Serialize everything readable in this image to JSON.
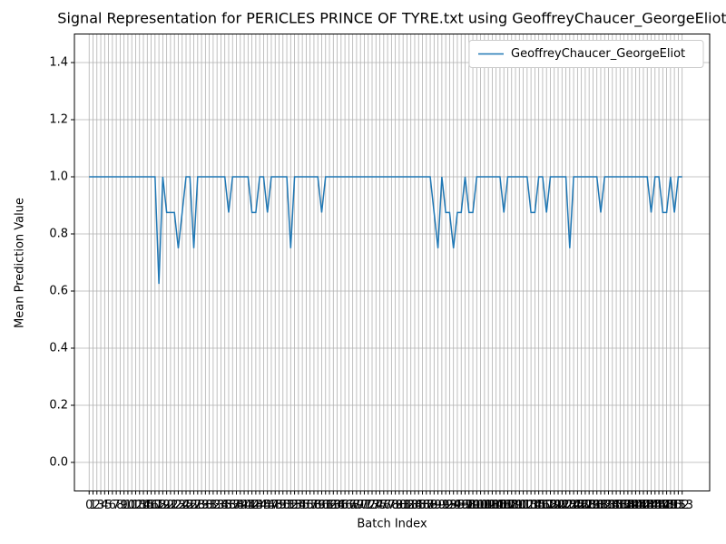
{
  "chart_data": {
    "type": "line",
    "title": "Signal Representation for PERICLES PRINCE OF TYRE.txt using GeoffreyChaucer_GeorgeEliot",
    "xlabel": "Batch Index",
    "ylabel": "Mean Prediction Value",
    "x": [
      0,
      1,
      2,
      3,
      4,
      5,
      6,
      7,
      8,
      9,
      10,
      11,
      12,
      13,
      14,
      15,
      16,
      17,
      18,
      19,
      20,
      21,
      22,
      23,
      24,
      25,
      26,
      27,
      28,
      29,
      30,
      31,
      32,
      33,
      34,
      35,
      36,
      37,
      38,
      39,
      40,
      41,
      42,
      43,
      44,
      45,
      46,
      47,
      48,
      49,
      50,
      51,
      52,
      53,
      54,
      55,
      56,
      57,
      58,
      59,
      60,
      61,
      62,
      63,
      64,
      65,
      66,
      67,
      68,
      69,
      70,
      71,
      72,
      73,
      74,
      75,
      76,
      77,
      78,
      79,
      80,
      81,
      82,
      83,
      84,
      85,
      86,
      87,
      88,
      89,
      90,
      91,
      92,
      93,
      94,
      95,
      96,
      97,
      98,
      99,
      100,
      101,
      102,
      103,
      104,
      105,
      106,
      107,
      108,
      109,
      110,
      111,
      112,
      113,
      114,
      115,
      116,
      117,
      118,
      119,
      120,
      121,
      122,
      123,
      124,
      125,
      126,
      127,
      128,
      129,
      130,
      131,
      132,
      133,
      134,
      135,
      136,
      137,
      138,
      139,
      140,
      141,
      142,
      143,
      144,
      145,
      146,
      147,
      148,
      149,
      150,
      151,
      152,
      153
    ],
    "series": [
      {
        "name": "GeoffreyChaucer_GeorgeEliot",
        "color": "#1f77b4",
        "values": [
          1,
          1,
          1,
          1,
          1,
          1,
          1,
          1,
          1,
          1,
          1,
          1,
          1,
          1,
          1,
          1,
          1,
          1,
          0.625,
          1,
          0.875,
          0.875,
          0.875,
          0.75,
          0.875,
          1,
          1,
          0.75,
          1,
          1,
          1,
          1,
          1,
          1,
          1,
          1,
          0.875,
          1,
          1,
          1,
          1,
          1,
          0.875,
          0.875,
          1,
          1,
          0.875,
          1,
          1,
          1,
          1,
          1,
          0.75,
          1,
          1,
          1,
          1,
          1,
          1,
          1,
          0.875,
          1,
          1,
          1,
          1,
          1,
          1,
          1,
          1,
          1,
          1,
          1,
          1,
          1,
          1,
          1,
          1,
          1,
          1,
          1,
          1,
          1,
          1,
          1,
          1,
          1,
          1,
          1,
          1,
          0.875,
          0.75,
          1,
          0.875,
          0.875,
          0.75,
          0.875,
          0.875,
          1,
          0.875,
          0.875,
          1,
          1,
          1,
          1,
          1,
          1,
          1,
          0.875,
          1,
          1,
          1,
          1,
          1,
          1,
          0.875,
          0.875,
          1,
          1,
          0.875,
          1,
          1,
          1,
          1,
          1,
          0.75,
          1,
          1,
          1,
          1,
          1,
          1,
          1,
          0.875,
          1,
          1,
          1,
          1,
          1,
          1,
          1,
          1,
          1,
          1,
          1,
          1,
          0.875,
          1,
          1,
          0.875,
          0.875,
          1,
          0.875,
          1,
          1
        ]
      }
    ],
    "xlim": [
      -3.8,
      160.1
    ],
    "xticks": [
      0,
      1,
      2,
      3,
      4,
      5,
      6,
      7,
      8,
      9,
      10,
      11,
      12,
      13,
      14,
      15,
      16,
      17,
      18,
      19,
      20,
      21,
      22,
      23,
      24,
      25,
      26,
      27,
      28,
      29,
      30,
      31,
      32,
      33,
      34,
      35,
      36,
      37,
      38,
      39,
      40,
      41,
      42,
      43,
      44,
      45,
      46,
      47,
      48,
      49,
      50,
      51,
      52,
      53,
      54,
      55,
      56,
      57,
      58,
      59,
      60,
      61,
      62,
      63,
      64,
      65,
      66,
      67,
      68,
      69,
      70,
      71,
      72,
      73,
      74,
      75,
      76,
      77,
      78,
      79,
      80,
      81,
      82,
      83,
      84,
      85,
      86,
      87,
      88,
      89,
      90,
      91,
      92,
      93,
      94,
      95,
      96,
      97,
      98,
      99,
      100,
      101,
      102,
      103,
      104,
      105,
      106,
      107,
      108,
      109,
      110,
      111,
      112,
      113,
      114,
      115,
      116,
      117,
      118,
      119,
      120,
      121,
      122,
      123,
      124,
      125,
      126,
      127,
      128,
      129,
      130,
      131,
      132,
      133,
      134,
      135,
      136,
      137,
      138,
      139,
      140,
      141,
      142,
      143,
      144,
      145,
      146,
      147,
      148,
      149,
      150,
      151,
      152,
      153
    ],
    "ylim": [
      -0.1,
      1.5
    ],
    "yticks": [
      {
        "value": 0,
        "label": "0.0"
      },
      0.2,
      0.4,
      0.6,
      0.8,
      {
        "value": 1,
        "label": "1.0"
      },
      1.2,
      1.4
    ],
    "grid": true,
    "legend": "upper right"
  }
}
